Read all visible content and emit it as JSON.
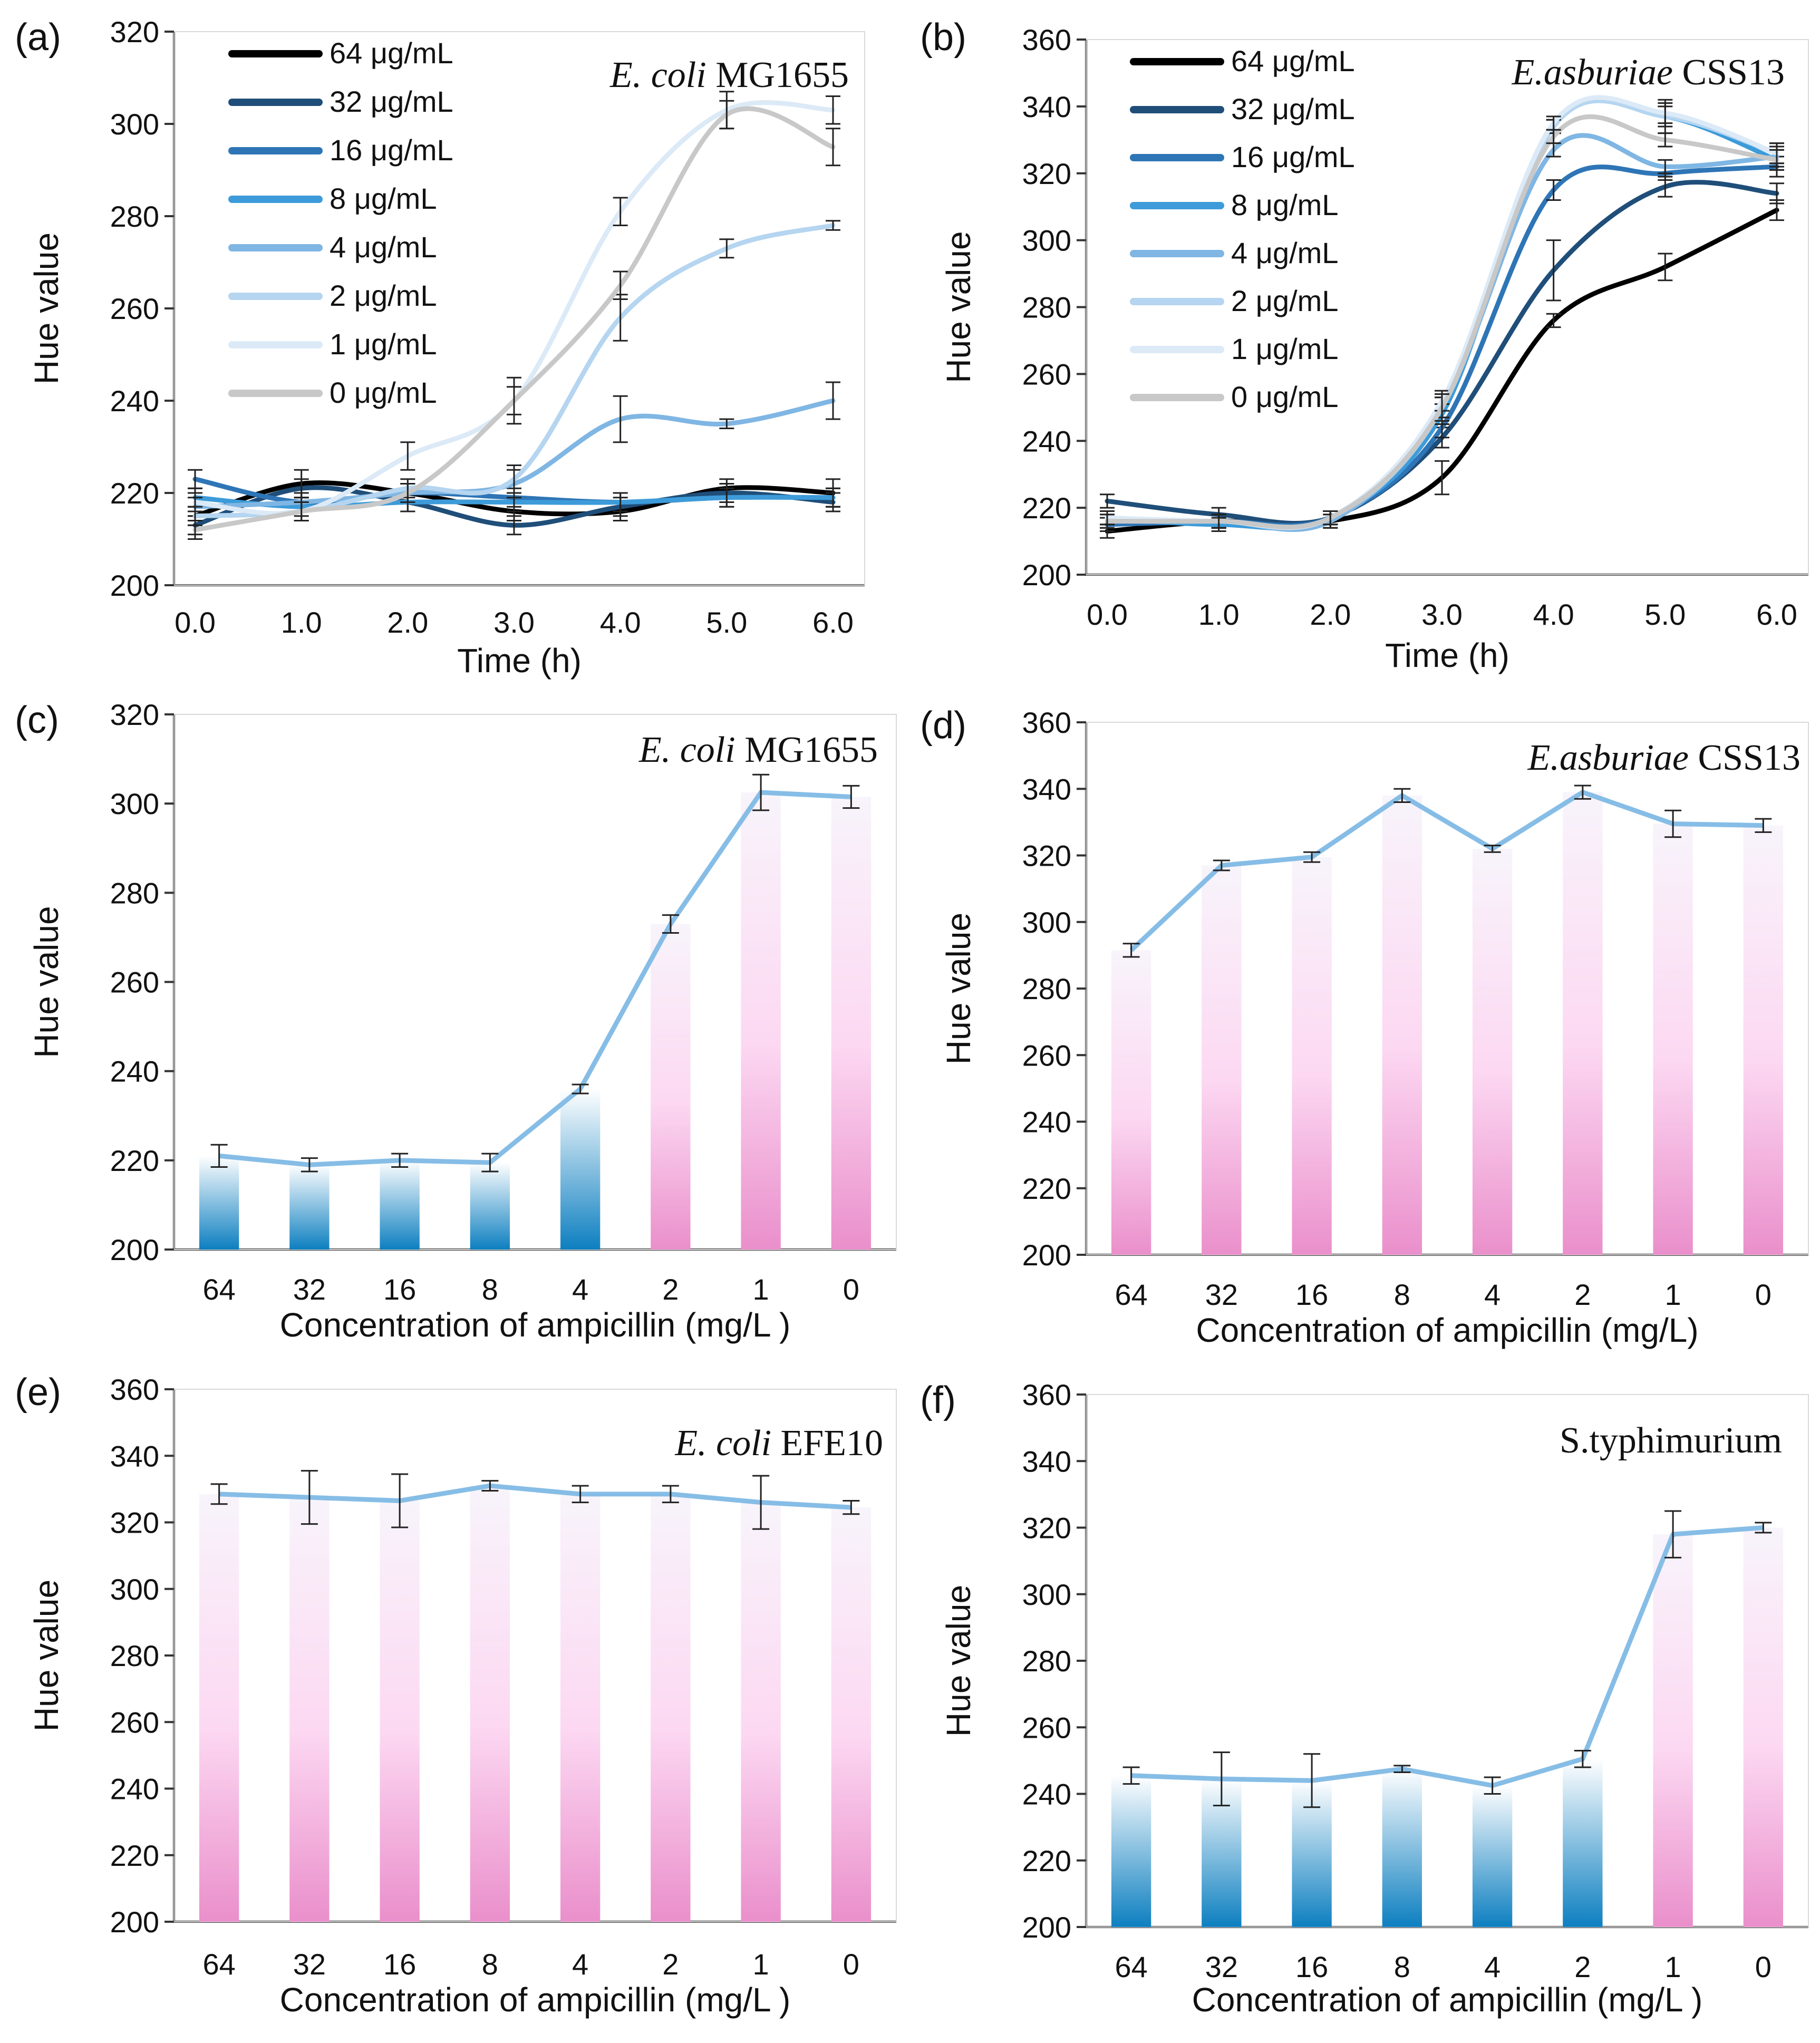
{
  "chart_data": [
    {
      "panel": "(a)",
      "type": "line",
      "title_italic": "E. coli",
      "title_rest": " MG1655",
      "xlabel": "Time (h)",
      "ylabel": "Hue value",
      "ylim": [
        200,
        320
      ],
      "yticks": [
        200,
        220,
        240,
        260,
        280,
        300,
        320
      ],
      "xlim": [
        0,
        6.0
      ],
      "x": [
        0,
        1,
        2,
        3,
        4,
        5,
        6
      ],
      "xticklabels": [
        "0.0",
        "1.0",
        "2.0",
        "3.0",
        "4.0",
        "5.0",
        "6.0"
      ],
      "legend": "top-left",
      "series": [
        {
          "name": "64 μg/mL",
          "color": "#000000",
          "values": [
            215,
            222,
            220,
            216,
            216,
            221,
            220
          ],
          "err": [
            2,
            3,
            2,
            2,
            2,
            2,
            3
          ]
        },
        {
          "name": "32 μg/mL",
          "color": "#1f4e79",
          "values": [
            213,
            221,
            218,
            213,
            217,
            220,
            218
          ],
          "err": [
            2,
            2,
            2,
            2,
            2,
            2,
            2
          ]
        },
        {
          "name": "16 μg/mL",
          "color": "#2e75b6",
          "values": [
            223,
            218,
            220,
            219,
            218,
            219,
            219
          ],
          "err": [
            2,
            2,
            2,
            2,
            2,
            2,
            2
          ]
        },
        {
          "name": "8 μg/mL",
          "color": "#3d9bd9",
          "values": [
            219,
            217,
            218,
            218,
            218,
            219,
            219
          ],
          "err": [
            2,
            2,
            2,
            2,
            2,
            2,
            2
          ]
        },
        {
          "name": "4 μg/mL",
          "color": "#7fb6e3",
          "values": [
            217,
            218,
            220,
            222,
            236,
            235,
            240
          ],
          "err": [
            2,
            2,
            2,
            3,
            5,
            1,
            4
          ]
        },
        {
          "name": "2 μg/mL",
          "color": "#b5d5f0",
          "values": [
            215,
            216,
            221,
            223,
            258,
            273,
            278
          ],
          "err": [
            2,
            2,
            2,
            3,
            5,
            2,
            1
          ]
        },
        {
          "name": "1 μg/mL",
          "color": "#dceaf7",
          "values": [
            218,
            216,
            228,
            240,
            281,
            303,
            303
          ],
          "err": [
            2,
            2,
            3,
            3,
            3,
            4,
            3
          ]
        },
        {
          "name": "0 μg/mL",
          "color": "#c8c8c8",
          "values": [
            212,
            216,
            220,
            240,
            265,
            302,
            295
          ],
          "err": [
            2,
            2,
            2,
            5,
            3,
            3,
            4
          ]
        }
      ]
    },
    {
      "panel": "(b)",
      "type": "line",
      "title_italic": "E.asburiae",
      "title_rest": " CSS13",
      "xlabel": "Time (h)",
      "ylabel": "Hue value",
      "ylim": [
        200,
        360
      ],
      "yticks": [
        200,
        220,
        240,
        260,
        280,
        300,
        320,
        340,
        360
      ],
      "xlim": [
        0,
        6.0
      ],
      "x": [
        0,
        1,
        2,
        3,
        4,
        5,
        6
      ],
      "xticklabels": [
        "0.0",
        "1.0",
        "2.0",
        "3.0",
        "4.0",
        "5.0",
        "6.0"
      ],
      "legend": "top-left",
      "series": [
        {
          "name": "64 μg/mL",
          "color": "#000000",
          "values": [
            213,
            216,
            216,
            229,
            276,
            292,
            309
          ],
          "err": [
            2,
            2,
            2,
            5,
            2,
            4,
            3
          ]
        },
        {
          "name": "32 μg/mL",
          "color": "#1f4e79",
          "values": [
            222,
            218,
            217,
            241,
            291,
            316,
            314
          ],
          "err": [
            2,
            2,
            2,
            3,
            9,
            3,
            3
          ]
        },
        {
          "name": "16 μg/mL",
          "color": "#2e75b6",
          "values": [
            215,
            216,
            217,
            244,
            315,
            320,
            322
          ],
          "err": [
            2,
            2,
            2,
            3,
            3,
            2,
            3
          ]
        },
        {
          "name": "8 μg/mL",
          "color": "#3d9bd9",
          "values": [
            217,
            215,
            217,
            248,
            334,
            337,
            324
          ],
          "err": [
            2,
            2,
            2,
            3,
            2,
            5,
            3
          ]
        },
        {
          "name": "4 μg/mL",
          "color": "#7fb6e3",
          "values": [
            216,
            216,
            216,
            250,
            327,
            322,
            325
          ],
          "err": [
            2,
            2,
            2,
            3,
            2,
            2,
            3
          ]
        },
        {
          "name": "2 μg/mL",
          "color": "#b5d5f0",
          "values": [
            217,
            216,
            217,
            250,
            334,
            337,
            326
          ],
          "err": [
            2,
            2,
            2,
            3,
            2,
            3,
            3
          ]
        },
        {
          "name": "1 μg/mL",
          "color": "#dceaf7",
          "values": [
            217,
            216,
            217,
            252,
            335,
            338,
            326
          ],
          "err": [
            2,
            2,
            2,
            3,
            2,
            3,
            3
          ]
        },
        {
          "name": "0 μg/mL",
          "color": "#c8c8c8",
          "values": [
            216,
            216,
            217,
            250,
            331,
            330,
            324
          ],
          "err": [
            2,
            2,
            2,
            4,
            2,
            2,
            3
          ]
        }
      ]
    },
    {
      "panel": "(c)",
      "type": "bar",
      "title_italic": "E. coli",
      "title_rest": " MG1655",
      "xlabel": "Concentration of ampicillin (mg/L )",
      "ylabel": "Hue value",
      "ylim": [
        200,
        320
      ],
      "yticks": [
        200,
        220,
        240,
        260,
        280,
        300,
        320
      ],
      "categories": [
        "64",
        "32",
        "16",
        "8",
        "4",
        "2",
        "1",
        "0"
      ],
      "values": [
        221,
        219,
        220,
        219.5,
        236,
        273,
        302.5,
        301.5
      ],
      "err": [
        2.5,
        1.5,
        1.5,
        2,
        1,
        2,
        4,
        2.5
      ],
      "bar_colors": [
        "#0d7fc0",
        "#0d7fc0",
        "#0d7fc0",
        "#0d7fc0",
        "#0d7fc0",
        "#ea8fcb",
        "#ea8fcb",
        "#ea8fcb"
      ],
      "line_color": "#86bde6"
    },
    {
      "panel": "(d)",
      "type": "bar",
      "title_italic": "E.asburiae",
      "title_rest": " CSS13",
      "xlabel": "Concentration of ampicillin (mg/L)",
      "ylabel": "Hue value",
      "ylim": [
        200,
        360
      ],
      "yticks": [
        200,
        220,
        240,
        260,
        280,
        300,
        320,
        340,
        360
      ],
      "categories": [
        "64",
        "32",
        "16",
        "8",
        "4",
        "2",
        "1",
        "0"
      ],
      "values": [
        291.5,
        317,
        319.5,
        338,
        322,
        339,
        329.5,
        329
      ],
      "err": [
        2,
        1.5,
        1.5,
        2,
        1,
        2,
        4,
        2
      ],
      "bar_colors": [
        "#ea8fcb",
        "#ea8fcb",
        "#ea8fcb",
        "#ea8fcb",
        "#ea8fcb",
        "#ea8fcb",
        "#ea8fcb",
        "#ea8fcb"
      ],
      "line_color": "#86bde6"
    },
    {
      "panel": "(e)",
      "type": "bar",
      "title_italic": "E. coli",
      "title_rest": " EFE10",
      "xlabel": "Concentration of ampicillin (mg/L )",
      "ylabel": "Hue value",
      "ylim": [
        200,
        360
      ],
      "yticks": [
        200,
        220,
        240,
        260,
        280,
        300,
        320,
        340,
        360
      ],
      "categories": [
        "64",
        "32",
        "16",
        "8",
        "4",
        "2",
        "1",
        "0"
      ],
      "values": [
        328.5,
        327.5,
        326.5,
        331,
        328.5,
        328.5,
        326,
        324.5
      ],
      "err": [
        3,
        8,
        8,
        1.5,
        2.5,
        2.5,
        8,
        2
      ],
      "bar_colors": [
        "#ea8fcb",
        "#ea8fcb",
        "#ea8fcb",
        "#ea8fcb",
        "#ea8fcb",
        "#ea8fcb",
        "#ea8fcb",
        "#ea8fcb"
      ],
      "line_color": "#86bde6"
    },
    {
      "panel": "(f)",
      "type": "bar",
      "title_italic": "",
      "title_rest": "S.typhimurium",
      "xlabel": "Concentration of ampicillin (mg/L )",
      "ylabel": "Hue value",
      "ylim": [
        200,
        360
      ],
      "yticks": [
        200,
        220,
        240,
        260,
        280,
        300,
        320,
        340,
        360
      ],
      "categories": [
        "64",
        "32",
        "16",
        "8",
        "4",
        "2",
        "1",
        "0"
      ],
      "values": [
        245.5,
        244.5,
        244,
        247.5,
        242.5,
        250.5,
        318,
        320
      ],
      "err": [
        2.5,
        8,
        8,
        1,
        2.5,
        2.5,
        7,
        1.5
      ],
      "bar_colors": [
        "#0d7fc0",
        "#0d7fc0",
        "#0d7fc0",
        "#0d7fc0",
        "#0d7fc0",
        "#0d7fc0",
        "#ea8fcb",
        "#ea8fcb"
      ],
      "line_color": "#86bde6"
    }
  ]
}
